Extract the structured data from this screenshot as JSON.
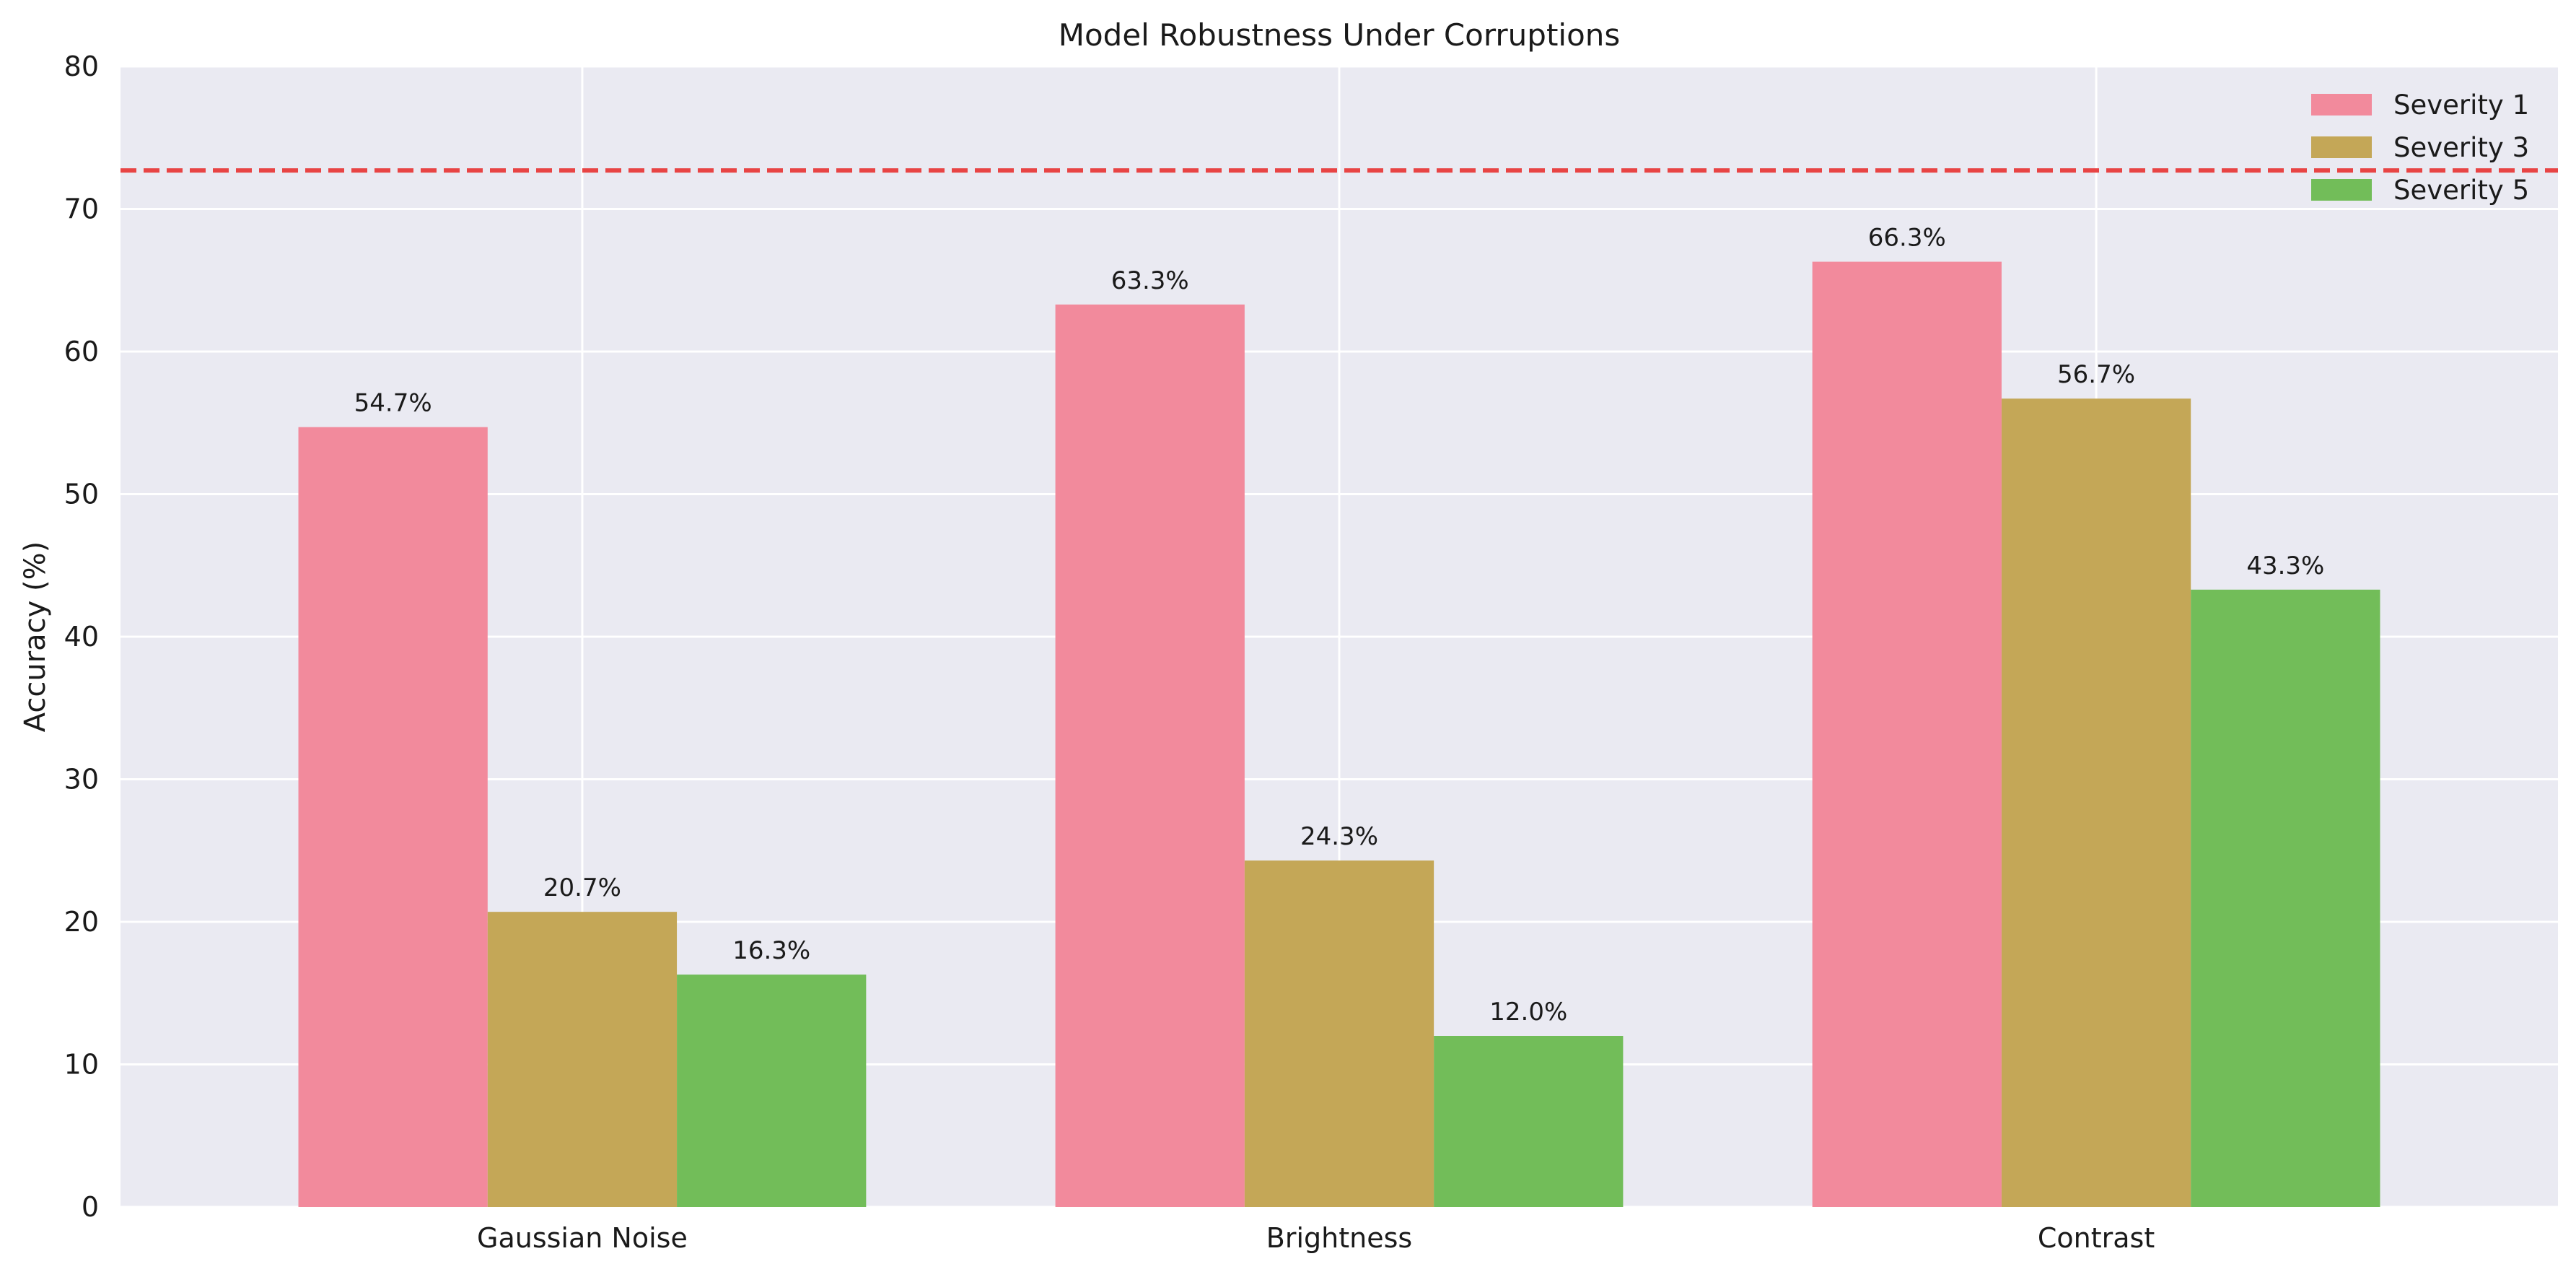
{
  "chart_data": {
    "type": "bar",
    "title": "Model Robustness Under Corruptions",
    "xlabel": "",
    "ylabel": "Accuracy (%)",
    "ylim": [
      0,
      80
    ],
    "yticks": [
      0,
      10,
      20,
      30,
      40,
      50,
      60,
      70,
      80
    ],
    "categories": [
      "Gaussian Noise",
      "Brightness",
      "Contrast"
    ],
    "series": [
      {
        "name": "Severity 1",
        "values": [
          54.7,
          63.3,
          66.3
        ],
        "labels": [
          "54.7%",
          "63.3%",
          "66.3%"
        ],
        "color": "#f28a9c"
      },
      {
        "name": "Severity 3",
        "values": [
          20.7,
          24.3,
          56.7
        ],
        "labels": [
          "20.7%",
          "24.3%",
          "56.7%"
        ],
        "color": "#c4a757"
      },
      {
        "name": "Severity 5",
        "values": [
          16.3,
          12.0,
          43.3
        ],
        "labels": [
          "16.3%",
          "12.0%",
          "43.3%"
        ],
        "color": "#72bd59"
      }
    ],
    "reference_line": {
      "value": 72.7,
      "style": "dashed",
      "color": "#e84444"
    },
    "grid": true,
    "legend_position": "top-right",
    "background_color": "#eaeaf2"
  }
}
